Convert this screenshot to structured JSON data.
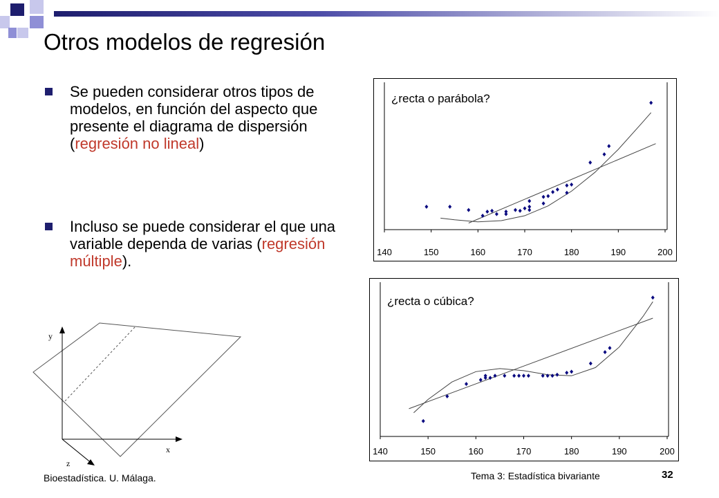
{
  "slide": {
    "title": "Otros modelos de regresión",
    "bullets": [
      {
        "pre": "Se pueden considerar otros tipos de modelos, en función del aspecto que presente el diagrama de dispersión (",
        "accent": "regresión no lineal",
        "post": ")"
      },
      {
        "pre": "Incluso se puede considerar el que una variable dependa de varias (",
        "accent": "regresión múltiple",
        "post": ")."
      }
    ],
    "accent_color": "#c0392b"
  },
  "plane_diagram": {
    "axis_labels": {
      "x": "x",
      "y": "y",
      "z": "z"
    }
  },
  "chart_data": [
    {
      "type": "scatter",
      "title": "¿recta o parábola?",
      "x_ticks": [
        "140",
        "150",
        "160",
        "170",
        "180",
        "190",
        "200"
      ],
      "xlim": [
        140,
        200
      ],
      "points": [
        [
          149,
          0.8
        ],
        [
          154,
          0.8
        ],
        [
          158,
          0.4
        ],
        [
          161,
          -0.3
        ],
        [
          162,
          0.2
        ],
        [
          163,
          0.3
        ],
        [
          164,
          -0.1
        ],
        [
          166,
          0.2
        ],
        [
          166,
          -0.1
        ],
        [
          168,
          0.4
        ],
        [
          169,
          0.3
        ],
        [
          170,
          0.6
        ],
        [
          171,
          0.4
        ],
        [
          171,
          0.8
        ],
        [
          171,
          1.5
        ],
        [
          174,
          1.2
        ],
        [
          174,
          2.0
        ],
        [
          175,
          2.1
        ],
        [
          176,
          2.6
        ],
        [
          177,
          2.9
        ],
        [
          179,
          3.4
        ],
        [
          179,
          2.5
        ],
        [
          180,
          3.5
        ],
        [
          184,
          6.2
        ],
        [
          187,
          7.2
        ],
        [
          188,
          8.2
        ],
        [
          197,
          13.5
        ]
      ],
      "fits": [
        {
          "name": "recta",
          "points": [
            [
              158,
              -1.2
            ],
            [
              198,
              8.5
            ]
          ]
        },
        {
          "name": "parábola",
          "points": [
            [
              152,
              -0.6
            ],
            [
              155,
              -0.8
            ],
            [
              160,
              -1.05
            ],
            [
              165,
              -0.9
            ],
            [
              170,
              -0.3
            ],
            [
              175,
              0.9
            ],
            [
              180,
              2.7
            ],
            [
              185,
              5.0
            ],
            [
              190,
              7.8
            ],
            [
              195,
              11.0
            ],
            [
              197,
              12.3
            ]
          ]
        }
      ],
      "ylim": [
        -2,
        16
      ]
    },
    {
      "type": "scatter",
      "title": "¿recta o cúbica?",
      "x_ticks": [
        "140",
        "150",
        "160",
        "170",
        "180",
        "190",
        "200"
      ],
      "xlim": [
        140,
        200
      ],
      "points": [
        [
          149,
          -2.0
        ],
        [
          154,
          0.4
        ],
        [
          158,
          1.6
        ],
        [
          161,
          2.0
        ],
        [
          162,
          2.2
        ],
        [
          162,
          2.4
        ],
        [
          163,
          2.2
        ],
        [
          164,
          2.4
        ],
        [
          166,
          2.4
        ],
        [
          168,
          2.4
        ],
        [
          169,
          2.4
        ],
        [
          170,
          2.4
        ],
        [
          171,
          2.4
        ],
        [
          174,
          2.4
        ],
        [
          175,
          2.4
        ],
        [
          176,
          2.4
        ],
        [
          177,
          2.5
        ],
        [
          179,
          2.7
        ],
        [
          180,
          2.8
        ],
        [
          184,
          3.6
        ],
        [
          187,
          4.7
        ],
        [
          188,
          5.1
        ],
        [
          197,
          10.0
        ]
      ],
      "fits": [
        {
          "name": "recta",
          "points": [
            [
              146,
              -0.8
            ],
            [
              197,
              8.0
            ]
          ]
        },
        {
          "name": "cúbica",
          "points": [
            [
              147,
              -1.2
            ],
            [
              150,
              0.1
            ],
            [
              155,
              1.8
            ],
            [
              160,
              2.8
            ],
            [
              165,
              3.1
            ],
            [
              170,
              2.9
            ],
            [
              175,
              2.5
            ],
            [
              180,
              2.4
            ],
            [
              185,
              3.2
            ],
            [
              190,
              5.2
            ],
            [
              195,
              8.2
            ],
            [
              197,
              9.6
            ]
          ]
        }
      ],
      "ylim": [
        -3.5,
        11.5
      ]
    }
  ],
  "footer": {
    "left": "Bioestadística. U. Málaga.",
    "center": "Tema 3: Estadística bivariante",
    "page": "32"
  }
}
